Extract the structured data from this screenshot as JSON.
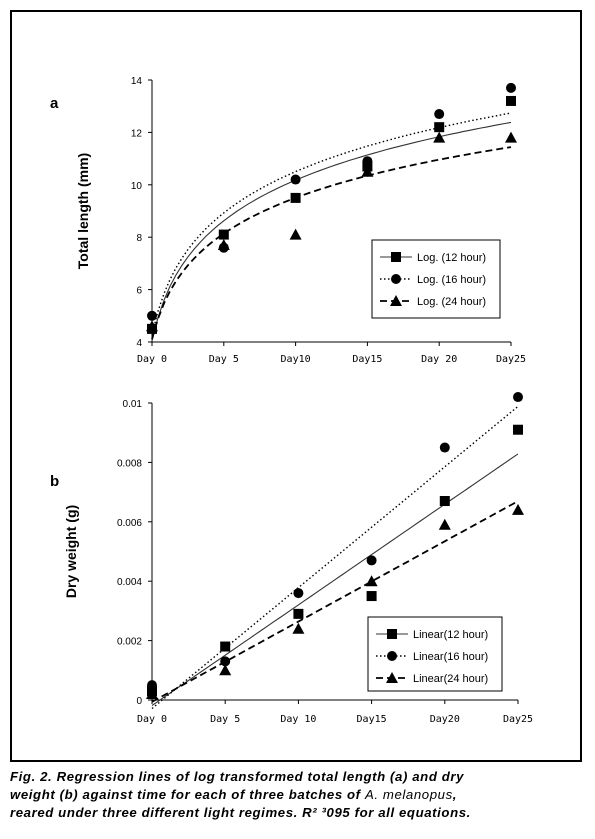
{
  "chart_data": [
    {
      "type": "scatter",
      "panel_label": "a",
      "ylabel": "Total length (mm)",
      "xlabel": "",
      "categories": [
        "Day 0",
        "Day 5",
        "Day10",
        "Day15",
        "Day 20",
        "Day25"
      ],
      "x": [
        0,
        5,
        10,
        15,
        20,
        25
      ],
      "ylim": [
        4,
        14
      ],
      "yticks": [
        "4",
        "6",
        "8",
        "10",
        "12",
        "14"
      ],
      "trendline": "logarithmic",
      "series": [
        {
          "name": "Log. (12 hour)",
          "marker": "square",
          "dash": "solid",
          "values": [
            4.5,
            8.1,
            9.5,
            10.7,
            12.2,
            13.2
          ]
        },
        {
          "name": "Log. (16 hour)",
          "marker": "circle",
          "dash": "dotted",
          "values": [
            5.0,
            7.6,
            10.2,
            10.9,
            12.7,
            13.7
          ]
        },
        {
          "name": "Log. (24 hour)",
          "marker": "triangle",
          "dash": "dashed",
          "values": [
            4.6,
            7.7,
            8.1,
            10.5,
            11.8,
            11.8
          ]
        }
      ],
      "legend_position": "bottom-right"
    },
    {
      "type": "scatter",
      "panel_label": "b",
      "ylabel": "Dry weight (g)",
      "xlabel": "",
      "categories": [
        "Day 0",
        "Day 5",
        "Day 10",
        "Day15",
        "Day20",
        "Day25"
      ],
      "x": [
        0,
        5,
        10,
        15,
        20,
        25
      ],
      "ylim": [
        0,
        0.01
      ],
      "yticks": [
        "0",
        "0.002",
        "0.004",
        "0.006",
        "0.008",
        "0.01"
      ],
      "trendline": "linear",
      "series": [
        {
          "name": "Linear(12 hour)",
          "marker": "square",
          "dash": "solid",
          "values": [
            0.0003,
            0.0018,
            0.0029,
            0.0035,
            0.0067,
            0.0091
          ]
        },
        {
          "name": "Linear(16 hour)",
          "marker": "circle",
          "dash": "dotted",
          "values": [
            0.0005,
            0.0013,
            0.0036,
            0.0047,
            0.0085,
            0.0102
          ]
        },
        {
          "name": "Linear(24 hour)",
          "marker": "triangle",
          "dash": "dashed",
          "values": [
            0.0002,
            0.001,
            0.0024,
            0.004,
            0.0059,
            0.0064
          ]
        }
      ],
      "legend_position": "bottom-right"
    }
  ],
  "caption": {
    "line1": "Fig. 2. Regression lines of log transformed total length (a) and dry",
    "line2_prefix": "weight (b) against time for each of three batches of ",
    "line2_species": "A. melanopus",
    "line2_suffix": ",",
    "line3": "reared under three different light regimes. R² ³095 for all equations."
  }
}
